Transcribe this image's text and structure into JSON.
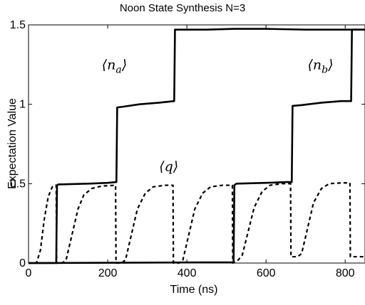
{
  "chart_data": {
    "type": "line",
    "title": "Noon State Synthesis N=3",
    "xlabel": "Time (ns)",
    "ylabel": "Expectation Value",
    "xlim": [
      0,
      850
    ],
    "ylim": [
      0,
      1.5
    ],
    "xticks": [
      0,
      200,
      400,
      600,
      800
    ],
    "yticks": [
      0,
      0.5,
      1,
      1.5
    ],
    "xtick_labels": [
      "0",
      "200",
      "400",
      "600",
      "800"
    ],
    "ytick_labels": [
      "0",
      "0.5",
      "1",
      "1.5"
    ],
    "grid": false,
    "legend": "none",
    "annotations": [
      {
        "text": "⟨n_a⟩",
        "x": 185,
        "y": 1.22
      },
      {
        "text": "⟨q⟩",
        "x": 330,
        "y": 0.58
      },
      {
        "text": "⟨n_b⟩",
        "x": 705,
        "y": 1.22
      }
    ],
    "series": [
      {
        "style": "solid",
        "color": "#000000",
        "points": [
          [
            0,
            0
          ],
          [
            70,
            0
          ],
          [
            72,
            0.49
          ],
          [
            75,
            0.495
          ],
          [
            150,
            0.5
          ],
          [
            200,
            0.505
          ],
          [
            222,
            0.51
          ],
          [
            224,
            0.98
          ],
          [
            240,
            0.985
          ],
          [
            280,
            1.0
          ],
          [
            330,
            1.01
          ],
          [
            368,
            1.02
          ],
          [
            370,
            1.47
          ],
          [
            450,
            1.47
          ],
          [
            520,
            1.475
          ],
          [
            600,
            1.475
          ],
          [
            700,
            1.47
          ],
          [
            850,
            1.47
          ]
        ]
      },
      {
        "style": "solid",
        "color": "#000000",
        "points": [
          [
            0,
            0
          ],
          [
            518,
            0.005
          ],
          [
            520,
            0.49
          ],
          [
            525,
            0.5
          ],
          [
            600,
            0.505
          ],
          [
            650,
            0.51
          ],
          [
            665,
            0.51
          ],
          [
            667,
            0.99
          ],
          [
            690,
            0.995
          ],
          [
            740,
            1.01
          ],
          [
            790,
            1.02
          ],
          [
            815,
            1.02
          ],
          [
            817,
            1.47
          ],
          [
            850,
            1.47
          ]
        ]
      },
      {
        "style": "dashed",
        "color": "#000000",
        "points": [
          [
            0,
            0
          ],
          [
            20,
            0
          ],
          [
            30,
            0.08
          ],
          [
            40,
            0.28
          ],
          [
            50,
            0.42
          ],
          [
            60,
            0.48
          ],
          [
            68,
            0.49
          ],
          [
            70,
            0.49
          ],
          [
            71,
            0.0
          ],
          [
            85,
            0.0
          ],
          [
            95,
            0.02
          ],
          [
            110,
            0.18
          ],
          [
            125,
            0.34
          ],
          [
            140,
            0.43
          ],
          [
            160,
            0.47
          ],
          [
            185,
            0.485
          ],
          [
            220,
            0.49
          ],
          [
            221,
            0.0
          ],
          [
            235,
            0.0
          ],
          [
            245,
            0.02
          ],
          [
            260,
            0.18
          ],
          [
            275,
            0.34
          ],
          [
            295,
            0.44
          ],
          [
            315,
            0.48
          ],
          [
            345,
            0.49
          ],
          [
            365,
            0.49
          ],
          [
            366,
            0.0
          ],
          [
            380,
            0.0
          ],
          [
            390,
            0.02
          ],
          [
            405,
            0.18
          ],
          [
            420,
            0.34
          ],
          [
            440,
            0.44
          ],
          [
            460,
            0.48
          ],
          [
            490,
            0.49
          ],
          [
            515,
            0.49
          ],
          [
            516,
            0.0
          ],
          [
            530,
            0.02
          ],
          [
            540,
            0.05
          ],
          [
            555,
            0.2
          ],
          [
            570,
            0.35
          ],
          [
            590,
            0.45
          ],
          [
            610,
            0.49
          ],
          [
            640,
            0.5
          ],
          [
            662,
            0.5
          ],
          [
            663,
            0.04
          ],
          [
            680,
            0.04
          ],
          [
            690,
            0.06
          ],
          [
            705,
            0.22
          ],
          [
            720,
            0.38
          ],
          [
            740,
            0.47
          ],
          [
            760,
            0.5
          ],
          [
            790,
            0.505
          ],
          [
            812,
            0.505
          ],
          [
            813,
            0.04
          ],
          [
            850,
            0.04
          ]
        ]
      }
    ]
  }
}
